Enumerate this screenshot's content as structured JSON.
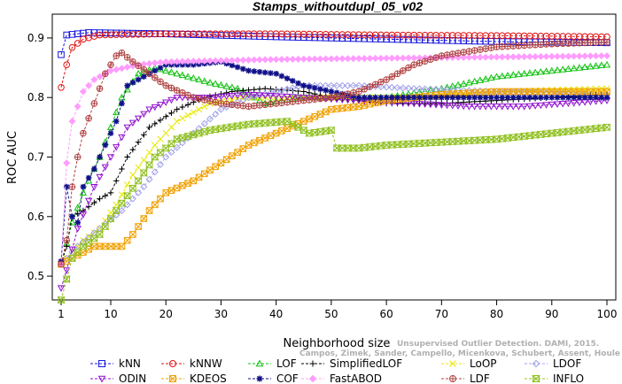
{
  "chart_data": {
    "type": "line",
    "title": "Stamps_withoutdupl_05_v02",
    "xlabel": "Neighborhood size",
    "ylabel": "ROC AUC",
    "xlim": [
      1,
      100
    ],
    "ylim": [
      0.46,
      0.94
    ],
    "xticks": [
      1,
      10,
      20,
      30,
      40,
      50,
      60,
      70,
      80,
      90,
      100
    ],
    "yticks": [
      0.5,
      0.6,
      0.7,
      0.8,
      0.9
    ],
    "grid": false,
    "legend_position": "bottom",
    "series": [
      {
        "name": "kNN",
        "color": "#1515e0",
        "marker": "square",
        "keypoints": [
          [
            1,
            0.872
          ],
          [
            2,
            0.905
          ],
          [
            4,
            0.907
          ],
          [
            6,
            0.909
          ],
          [
            20,
            0.907
          ],
          [
            40,
            0.902
          ],
          [
            60,
            0.898
          ],
          [
            80,
            0.894
          ],
          [
            100,
            0.892
          ]
        ]
      },
      {
        "name": "kNNW",
        "color": "#e01010",
        "marker": "circle",
        "keypoints": [
          [
            1,
            0.817
          ],
          [
            2,
            0.855
          ],
          [
            3,
            0.884
          ],
          [
            5,
            0.898
          ],
          [
            8,
            0.905
          ],
          [
            20,
            0.907
          ],
          [
            40,
            0.907
          ],
          [
            60,
            0.905
          ],
          [
            80,
            0.904
          ],
          [
            100,
            0.902
          ]
        ]
      },
      {
        "name": "LOF",
        "color": "#10c010",
        "marker": "triangle",
        "keypoints": [
          [
            1,
            0.52
          ],
          [
            3,
            0.59
          ],
          [
            5,
            0.64
          ],
          [
            8,
            0.7
          ],
          [
            10,
            0.75
          ],
          [
            12,
            0.8
          ],
          [
            15,
            0.84
          ],
          [
            18,
            0.85
          ],
          [
            22,
            0.84
          ],
          [
            28,
            0.825
          ],
          [
            33,
            0.815
          ],
          [
            38,
            0.79
          ],
          [
            44,
            0.8
          ],
          [
            50,
            0.8
          ],
          [
            60,
            0.8
          ],
          [
            70,
            0.815
          ],
          [
            80,
            0.835
          ],
          [
            90,
            0.845
          ],
          [
            100,
            0.855
          ]
        ]
      },
      {
        "name": "SimplifiedLOF",
        "color": "#000000",
        "marker": "plus",
        "keypoints": [
          [
            1,
            0.52
          ],
          [
            2,
            0.55
          ],
          [
            3,
            0.6
          ],
          [
            5,
            0.61
          ],
          [
            8,
            0.63
          ],
          [
            10,
            0.64
          ],
          [
            13,
            0.7
          ],
          [
            17,
            0.75
          ],
          [
            22,
            0.78
          ],
          [
            27,
            0.8
          ],
          [
            32,
            0.81
          ],
          [
            38,
            0.815
          ],
          [
            45,
            0.81
          ],
          [
            50,
            0.8
          ],
          [
            55,
            0.795
          ],
          [
            60,
            0.79
          ],
          [
            70,
            0.79
          ],
          [
            80,
            0.795
          ],
          [
            90,
            0.8
          ],
          [
            100,
            0.805
          ]
        ]
      },
      {
        "name": "LoOP",
        "color": "#e8e800",
        "marker": "x",
        "keypoints": [
          [
            1,
            0.52
          ],
          [
            5,
            0.56
          ],
          [
            8,
            0.58
          ],
          [
            11,
            0.62
          ],
          [
            14,
            0.67
          ],
          [
            18,
            0.72
          ],
          [
            22,
            0.76
          ],
          [
            28,
            0.79
          ],
          [
            35,
            0.8
          ],
          [
            45,
            0.8
          ],
          [
            55,
            0.8
          ],
          [
            65,
            0.8
          ],
          [
            80,
            0.81
          ],
          [
            100,
            0.815
          ]
        ]
      },
      {
        "name": "LDOF",
        "color": "#a0a0e8",
        "marker": "diamond",
        "keypoints": [
          [
            1,
            0.52
          ],
          [
            4,
            0.55
          ],
          [
            8,
            0.58
          ],
          [
            12,
            0.61
          ],
          [
            16,
            0.65
          ],
          [
            20,
            0.7
          ],
          [
            25,
            0.74
          ],
          [
            30,
            0.78
          ],
          [
            35,
            0.8
          ],
          [
            40,
            0.81
          ],
          [
            45,
            0.82
          ],
          [
            55,
            0.82
          ],
          [
            65,
            0.815
          ],
          [
            80,
            0.81
          ],
          [
            100,
            0.805
          ]
        ]
      },
      {
        "name": "ODIN",
        "color": "#9010d0",
        "marker": "triangle-down",
        "keypoints": [
          [
            1,
            0.48
          ],
          [
            2,
            0.51
          ],
          [
            4,
            0.58
          ],
          [
            7,
            0.65
          ],
          [
            10,
            0.7
          ],
          [
            13,
            0.75
          ],
          [
            17,
            0.78
          ],
          [
            22,
            0.8
          ],
          [
            28,
            0.8
          ],
          [
            35,
            0.805
          ],
          [
            45,
            0.8
          ],
          [
            55,
            0.795
          ],
          [
            65,
            0.79
          ],
          [
            75,
            0.785
          ],
          [
            85,
            0.785
          ],
          [
            100,
            0.795
          ]
        ]
      },
      {
        "name": "KDEOS",
        "color": "#f0a000",
        "marker": "square-x",
        "keypoints": [
          [
            1,
            0.52
          ],
          [
            3,
            0.53
          ],
          [
            5,
            0.54
          ],
          [
            7,
            0.55
          ],
          [
            10,
            0.55
          ],
          [
            12,
            0.55
          ],
          [
            14,
            0.57
          ],
          [
            17,
            0.61
          ],
          [
            20,
            0.64
          ],
          [
            25,
            0.66
          ],
          [
            30,
            0.69
          ],
          [
            35,
            0.72
          ],
          [
            40,
            0.74
          ],
          [
            45,
            0.76
          ],
          [
            50,
            0.78
          ],
          [
            55,
            0.785
          ],
          [
            60,
            0.795
          ],
          [
            70,
            0.805
          ],
          [
            80,
            0.81
          ],
          [
            100,
            0.81
          ]
        ]
      },
      {
        "name": "COF",
        "color": "#10108a",
        "marker": "star",
        "keypoints": [
          [
            1,
            0.525
          ],
          [
            2,
            0.65
          ],
          [
            3,
            0.6
          ],
          [
            4,
            0.59
          ],
          [
            5,
            0.65
          ],
          [
            7,
            0.68
          ],
          [
            9,
            0.72
          ],
          [
            11,
            0.76
          ],
          [
            13,
            0.82
          ],
          [
            16,
            0.835
          ],
          [
            20,
            0.855
          ],
          [
            25,
            0.855
          ],
          [
            30,
            0.86
          ],
          [
            35,
            0.845
          ],
          [
            40,
            0.84
          ],
          [
            45,
            0.82
          ],
          [
            50,
            0.81
          ],
          [
            55,
            0.8
          ],
          [
            60,
            0.8
          ],
          [
            70,
            0.8
          ],
          [
            80,
            0.8
          ],
          [
            100,
            0.8
          ]
        ]
      },
      {
        "name": "FastABOD",
        "color": "#ff9cff",
        "marker": "diamond-filled",
        "keypoints": [
          [
            1,
            0.52
          ],
          [
            2,
            0.69
          ],
          [
            3,
            0.76
          ],
          [
            5,
            0.81
          ],
          [
            7,
            0.83
          ],
          [
            10,
            0.845
          ],
          [
            15,
            0.855
          ],
          [
            20,
            0.86
          ],
          [
            30,
            0.862
          ],
          [
            40,
            0.864
          ],
          [
            60,
            0.866
          ],
          [
            80,
            0.868
          ],
          [
            100,
            0.87
          ]
        ]
      },
      {
        "name": "LDF",
        "color": "#b04040",
        "marker": "circle-plus",
        "keypoints": [
          [
            1,
            0.52
          ],
          [
            2,
            0.56
          ],
          [
            3,
            0.65
          ],
          [
            4,
            0.7
          ],
          [
            5,
            0.74
          ],
          [
            7,
            0.79
          ],
          [
            9,
            0.84
          ],
          [
            11,
            0.87
          ],
          [
            12,
            0.875
          ],
          [
            14,
            0.86
          ],
          [
            17,
            0.84
          ],
          [
            20,
            0.82
          ],
          [
            25,
            0.8
          ],
          [
            30,
            0.79
          ],
          [
            35,
            0.785
          ],
          [
            40,
            0.79
          ],
          [
            45,
            0.795
          ],
          [
            50,
            0.8
          ],
          [
            55,
            0.81
          ],
          [
            60,
            0.83
          ],
          [
            65,
            0.855
          ],
          [
            70,
            0.87
          ],
          [
            80,
            0.885
          ],
          [
            90,
            0.89
          ],
          [
            100,
            0.893
          ]
        ]
      },
      {
        "name": "INFLO",
        "color": "#90c020",
        "marker": "hourglass",
        "keypoints": [
          [
            1,
            0.46
          ],
          [
            3,
            0.53
          ],
          [
            5,
            0.55
          ],
          [
            8,
            0.57
          ],
          [
            11,
            0.61
          ],
          [
            15,
            0.66
          ],
          [
            18,
            0.7
          ],
          [
            22,
            0.73
          ],
          [
            28,
            0.745
          ],
          [
            35,
            0.755
          ],
          [
            42,
            0.76
          ],
          [
            46,
            0.74
          ],
          [
            50,
            0.745
          ],
          [
            51,
            0.715
          ],
          [
            55,
            0.715
          ],
          [
            60,
            0.72
          ],
          [
            70,
            0.725
          ],
          [
            80,
            0.73
          ],
          [
            90,
            0.74
          ],
          [
            100,
            0.75
          ]
        ]
      }
    ]
  },
  "watermark": {
    "line1": "Unsupervised Outlier Detection. DAMI, 2015.",
    "line2": "Campos, Zimek, Sander, Campello, Micenkova, Schubert, Assent, Houle"
  }
}
